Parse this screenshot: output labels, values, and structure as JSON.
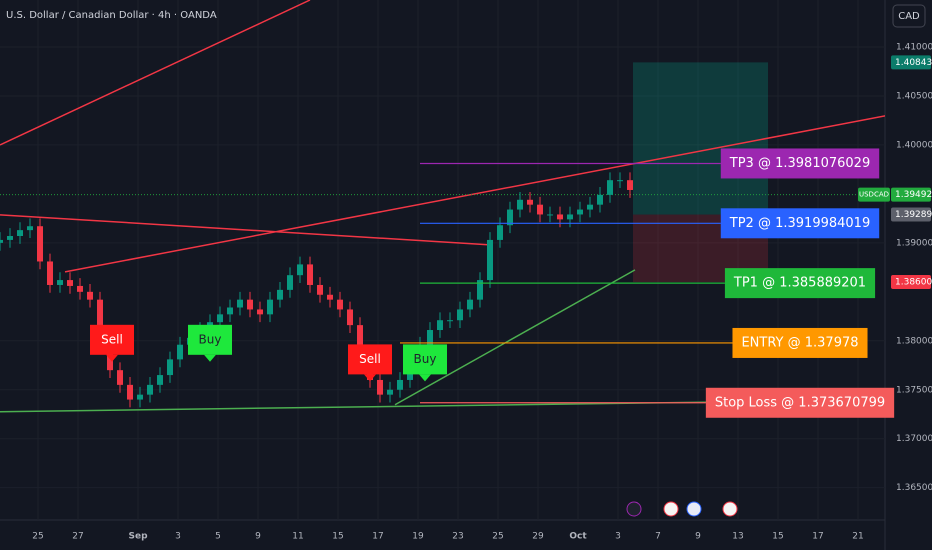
{
  "chart_data": {
    "type": "candlestick",
    "title": "U.S. Dollar / Canadian Dollar · 4h · OANDA",
    "currency_button": "CAD",
    "up_color": "#089981",
    "down_color": "#f23645",
    "grid": true,
    "xlim": [
      -1.9,
      42.35
    ],
    "ylim": [
      1.3617,
      1.4148
    ],
    "yticks": [
      {
        "value": 1.41,
        "label": "1.41000"
      },
      {
        "value": 1.405,
        "label": "1.40500"
      },
      {
        "value": 1.4,
        "label": "1.40000"
      },
      {
        "value": 1.39,
        "label": "1.39000"
      },
      {
        "value": 1.38,
        "label": "1.38000"
      },
      {
        "value": 1.375,
        "label": "1.37500"
      },
      {
        "value": 1.37,
        "label": "1.37000"
      },
      {
        "value": 1.365,
        "label": "1.36500"
      }
    ],
    "xticks": [
      {
        "value": 0,
        "label": "25"
      },
      {
        "value": 2,
        "label": "27"
      },
      {
        "value": 5,
        "label": "Sep"
      },
      {
        "value": 7,
        "label": "3"
      },
      {
        "value": 9,
        "label": "5"
      },
      {
        "value": 11,
        "label": "9"
      },
      {
        "value": 13,
        "label": "11"
      },
      {
        "value": 15,
        "label": "15"
      },
      {
        "value": 17,
        "label": "17"
      },
      {
        "value": 19,
        "label": "19"
      },
      {
        "value": 21,
        "label": "23"
      },
      {
        "value": 23,
        "label": "25"
      },
      {
        "value": 25,
        "label": "29"
      },
      {
        "value": 27,
        "label": "Oct"
      },
      {
        "value": 29,
        "label": "3"
      },
      {
        "value": 31,
        "label": "7"
      },
      {
        "value": 33,
        "label": "9"
      },
      {
        "value": 35,
        "label": "13"
      },
      {
        "value": 37,
        "label": "15"
      },
      {
        "value": 39,
        "label": "17"
      },
      {
        "value": 41,
        "label": "21"
      }
    ],
    "x": [
      -1.9,
      -1.4,
      -0.9,
      -0.4,
      0.1,
      0.6,
      1.1,
      1.6,
      2.1,
      2.6,
      3.1,
      3.6,
      4.1,
      4.6,
      5.1,
      5.6,
      6.1,
      6.6,
      7.1,
      7.6,
      8.1,
      8.6,
      9.1,
      9.6,
      10.1,
      10.6,
      11.1,
      11.6,
      12.1,
      12.6,
      13.1,
      13.6,
      14.1,
      14.6,
      15.1,
      15.6,
      16.1,
      16.6,
      17.1,
      17.6,
      18.1,
      18.6,
      19.1,
      19.6,
      20.1,
      20.6,
      21.1,
      21.6,
      22.1,
      22.6,
      23.1,
      23.6,
      24.1,
      24.6,
      25.1,
      25.6,
      26.1,
      26.6,
      27.1,
      27.6,
      28.1,
      28.6,
      29.1,
      29.6
    ],
    "open": [
      1.39,
      1.3903,
      1.3907,
      1.3913,
      1.3917,
      1.3881,
      1.3857,
      1.3862,
      1.3856,
      1.385,
      1.3842,
      1.3801,
      1.377,
      1.3755,
      1.374,
      1.3745,
      1.3755,
      1.3765,
      1.3781,
      1.3796,
      1.3803,
      1.3811,
      1.3819,
      1.3827,
      1.3834,
      1.3842,
      1.3832,
      1.3827,
      1.3842,
      1.3852,
      1.3867,
      1.3878,
      1.3857,
      1.3847,
      1.3842,
      1.3832,
      1.3816,
      1.3781,
      1.376,
      1.3745,
      1.375,
      1.376,
      1.3776,
      1.3796,
      1.3811,
      1.3821,
      1.3821,
      1.3832,
      1.3842,
      1.3862,
      1.3903,
      1.3918,
      1.3934,
      1.3944,
      1.3939,
      1.3929,
      1.3929,
      1.3924,
      1.3929,
      1.3934,
      1.3939,
      1.3949,
      1.3964,
      1.3964
    ],
    "high": [
      1.3911,
      1.3915,
      1.3921,
      1.3925,
      1.3925,
      1.3889,
      1.387,
      1.387,
      1.3864,
      1.3858,
      1.385,
      1.3809,
      1.3778,
      1.3763,
      1.3753,
      1.3763,
      1.3773,
      1.3789,
      1.3804,
      1.3811,
      1.3819,
      1.3827,
      1.3835,
      1.3842,
      1.385,
      1.385,
      1.384,
      1.385,
      1.386,
      1.3875,
      1.3886,
      1.3886,
      1.3865,
      1.3855,
      1.385,
      1.384,
      1.3824,
      1.3789,
      1.3768,
      1.3758,
      1.3768,
      1.3784,
      1.3804,
      1.3819,
      1.3829,
      1.3829,
      1.384,
      1.385,
      1.387,
      1.3911,
      1.3926,
      1.3942,
      1.3952,
      1.3952,
      1.3947,
      1.3937,
      1.3937,
      1.3937,
      1.3942,
      1.3947,
      1.3957,
      1.3972,
      1.3972,
      1.3972
    ],
    "low": [
      1.3892,
      1.3895,
      1.3899,
      1.3905,
      1.3873,
      1.3849,
      1.3849,
      1.3848,
      1.3842,
      1.3834,
      1.3793,
      1.3762,
      1.3747,
      1.3732,
      1.3732,
      1.3737,
      1.3747,
      1.3757,
      1.3773,
      1.3788,
      1.3795,
      1.3803,
      1.3811,
      1.3819,
      1.3826,
      1.3824,
      1.3819,
      1.3819,
      1.3834,
      1.3844,
      1.3859,
      1.3849,
      1.3839,
      1.3834,
      1.3824,
      1.3808,
      1.3773,
      1.3752,
      1.3737,
      1.3737,
      1.3742,
      1.3752,
      1.3768,
      1.3788,
      1.3803,
      1.3813,
      1.3813,
      1.3824,
      1.3834,
      1.3854,
      1.3895,
      1.391,
      1.3926,
      1.3931,
      1.3921,
      1.3921,
      1.3916,
      1.3916,
      1.3921,
      1.3926,
      1.3931,
      1.3941,
      1.3956,
      1.3946
    ],
    "close": [
      1.3903,
      1.3907,
      1.3913,
      1.3917,
      1.3881,
      1.3857,
      1.3862,
      1.3856,
      1.385,
      1.3842,
      1.3801,
      1.377,
      1.3755,
      1.374,
      1.3745,
      1.3755,
      1.3765,
      1.3781,
      1.3796,
      1.3803,
      1.3811,
      1.3819,
      1.3827,
      1.3834,
      1.3842,
      1.3832,
      1.3827,
      1.3842,
      1.3852,
      1.3867,
      1.3878,
      1.3857,
      1.3847,
      1.3842,
      1.3832,
      1.3816,
      1.3781,
      1.376,
      1.3745,
      1.375,
      1.376,
      1.3776,
      1.3796,
      1.3811,
      1.3821,
      1.3821,
      1.3832,
      1.3842,
      1.3862,
      1.3903,
      1.3918,
      1.3934,
      1.3944,
      1.3939,
      1.3929,
      1.3929,
      1.3924,
      1.3929,
      1.3934,
      1.3939,
      1.3949,
      1.3964,
      1.3964,
      1.3954
    ],
    "trendlines": [
      {
        "color": "#f23645",
        "x": [
          -1.9,
          13.6
        ],
        "y": [
          1.4,
          1.4148
        ]
      },
      {
        "color": "#f23645",
        "x": [
          1.35,
          42.6
        ],
        "y": [
          1.38704,
          1.40306
        ]
      },
      {
        "color": "#f23645",
        "x": [
          -1.9,
          22.6
        ],
        "y": [
          1.39286,
          1.3898
        ]
      },
      {
        "color": "#4caf50",
        "x": [
          -1.9,
          42.6
        ],
        "y": [
          1.37276,
          1.37398
        ]
      },
      {
        "color": "#4caf50",
        "x": [
          17.85,
          29.85
        ],
        "y": [
          1.37347,
          1.38724
        ]
      }
    ],
    "levels": [
      {
        "label": "TP3 @ 1.3981076029",
        "value": 1.3981076029,
        "from": 19.1,
        "color": "#9c27b0"
      },
      {
        "label": "TP2 @ 1.3919984019",
        "value": 1.3919984019,
        "from": 19.1,
        "color": "#2962ff"
      },
      {
        "label": "TP1 @ 1.385889201",
        "value": 1.385889201,
        "from": 19.1,
        "color": "#1fb83a"
      },
      {
        "label": "ENTRY @ 1.37978",
        "value": 1.37978,
        "from": 18.1,
        "color": "#ff9800"
      },
      {
        "label": "Stop Loss @ 1.373670799",
        "value": 1.373670799,
        "from": 19.1,
        "color": "#f45b5b"
      }
    ],
    "signals": [
      {
        "text": "Sell",
        "x": 3.7,
        "y": 1.3801,
        "color": "#ff1a1a"
      },
      {
        "text": "Buy",
        "x": 8.6,
        "y": 1.3801,
        "color": "#1ee83c"
      },
      {
        "text": "Sell",
        "x": 16.6,
        "y": 1.3781,
        "color": "#ff1a1a"
      },
      {
        "text": "Buy",
        "x": 19.35,
        "y": 1.3781,
        "color": "#1ee83c"
      }
    ],
    "position": {
      "x": [
        29.75,
        36.5
      ]
    },
    "price_labels": [
      {
        "value": 1.40843,
        "color": "#0b7c6a"
      },
      {
        "name": "USDCAD",
        "value": 1.39492,
        "color": "#22ab3e"
      },
      {
        "value": 1.39289,
        "color": "#5d606b"
      },
      {
        "value": 1.386,
        "label": "1.38600",
        "color": "#f23645"
      }
    ]
  }
}
